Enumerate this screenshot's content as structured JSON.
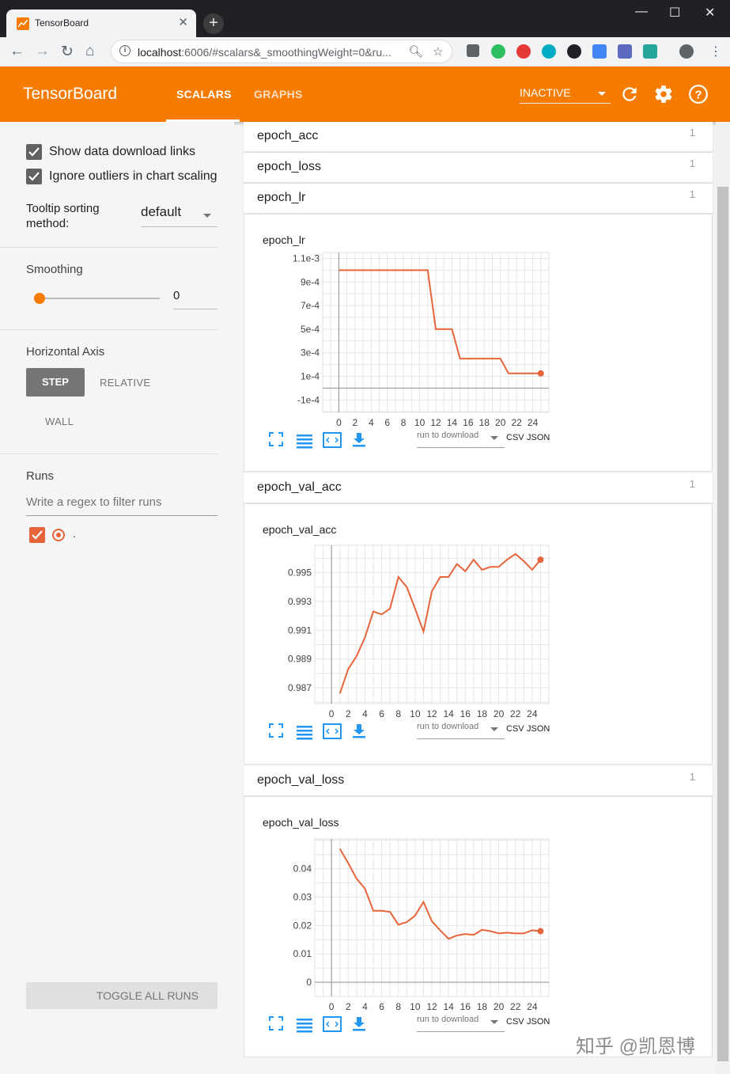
{
  "browser": {
    "tab_title": "TensorBoard",
    "tab_close": "✕",
    "new_tab": "+",
    "url_host": "localhost",
    "url_rest": ":6006/#scalars&_smoothingWeight=0&ru...",
    "window_controls": [
      "—",
      "☐",
      "✕"
    ]
  },
  "header": {
    "brand": "TensorBoard",
    "tabs": [
      {
        "label": "SCALARS",
        "active": true
      },
      {
        "label": "GRAPHS",
        "active": false
      }
    ],
    "status": "INACTIVE",
    "accent": "#f57c00"
  },
  "sidebar": {
    "show_download": "Show data download links",
    "ignore_outliers": "Ignore outliers in chart scaling",
    "tooltip_label_1": "Tooltip sorting",
    "tooltip_label_2": "method:",
    "tooltip_value": "default",
    "smoothing_label": "Smoothing",
    "smoothing_value": "0",
    "smoothing_level": 0,
    "haxis_label": "Horizontal Axis",
    "haxis_options": [
      "STEP",
      "RELATIVE",
      "WALL"
    ],
    "runs_label": "Runs",
    "filter_placeholder": "Write a regex to filter runs",
    "run_name": ".",
    "run_color": "#e8643a",
    "toggle_all": "TOGGLE ALL RUNS"
  },
  "categories": [
    {
      "name": "epoch_acc",
      "count": "1"
    },
    {
      "name": "epoch_loss",
      "count": "1"
    },
    {
      "name": "epoch_lr",
      "count": "1"
    },
    {
      "name": "epoch_val_acc",
      "count": "1"
    },
    {
      "name": "epoch_val_loss",
      "count": "1"
    }
  ],
  "chart_actions": {
    "run_to_download": "run to download",
    "csv": "CSV",
    "json": "JSON"
  },
  "chart_data": [
    {
      "type": "line",
      "title": "epoch_lr",
      "x": [
        0,
        1,
        2,
        3,
        4,
        5,
        6,
        7,
        8,
        9,
        10,
        11,
        12,
        13,
        14,
        15,
        16,
        17,
        18,
        19,
        20,
        21,
        22,
        23,
        24,
        25
      ],
      "series": [
        {
          "values": [
            0.001,
            0.001,
            0.001,
            0.001,
            0.001,
            0.001,
            0.001,
            0.001,
            0.001,
            0.001,
            0.001,
            0.001,
            0.0005,
            0.0005,
            0.0005,
            0.00025,
            0.00025,
            0.00025,
            0.00025,
            0.00025,
            0.00025,
            0.000125,
            0.000125,
            0.000125,
            0.000125,
            0.000125
          ]
        }
      ],
      "xticks": [
        0,
        2,
        4,
        6,
        8,
        10,
        12,
        14,
        16,
        18,
        20,
        22,
        24
      ],
      "yticks": [
        -0.0001,
        0.0001,
        0.0003,
        0.0005,
        0.0007,
        0.0009,
        0.0011
      ],
      "ytick_labels": [
        "-1e-4",
        "1e-4",
        "3e-4",
        "5e-4",
        "7e-4",
        "9e-4",
        "1.1e-3"
      ],
      "xlim": [
        -2,
        26
      ],
      "ylim": [
        -0.000205,
        0.00115
      ]
    },
    {
      "type": "line",
      "title": "epoch_val_acc",
      "x": [
        1,
        2,
        3,
        4,
        5,
        6,
        7,
        8,
        9,
        10,
        11,
        12,
        13,
        14,
        15,
        16,
        17,
        18,
        19,
        20,
        21,
        22,
        23,
        24,
        25
      ],
      "series": [
        {
          "values": [
            0.9866,
            0.9883,
            0.9892,
            0.9905,
            0.9923,
            0.9921,
            0.9925,
            0.9947,
            0.994,
            0.9925,
            0.9909,
            0.9937,
            0.9947,
            0.9947,
            0.9956,
            0.9951,
            0.9959,
            0.9952,
            0.9954,
            0.9954,
            0.9959,
            0.9963,
            0.9958,
            0.9952,
            0.9959
          ]
        }
      ],
      "xticks": [
        0,
        2,
        4,
        6,
        8,
        10,
        12,
        14,
        16,
        18,
        20,
        22,
        24
      ],
      "yticks": [
        0.987,
        0.989,
        0.991,
        0.993,
        0.995
      ],
      "ytick_labels": [
        "0.987",
        "0.989",
        "0.991",
        "0.993",
        "0.995"
      ],
      "xlim": [
        -2,
        26
      ],
      "ylim": [
        0.9859,
        0.9969
      ]
    },
    {
      "type": "line",
      "title": "epoch_val_loss",
      "x": [
        1,
        2,
        3,
        4,
        5,
        6,
        7,
        8,
        9,
        10,
        11,
        12,
        13,
        14,
        15,
        16,
        17,
        18,
        19,
        20,
        21,
        22,
        23,
        24,
        25
      ],
      "series": [
        {
          "values": [
            0.047,
            0.042,
            0.0365,
            0.033,
            0.0252,
            0.0252,
            0.0248,
            0.0203,
            0.0212,
            0.0235,
            0.0283,
            0.0215,
            0.0183,
            0.0153,
            0.0165,
            0.017,
            0.0167,
            0.0185,
            0.018,
            0.0172,
            0.0175,
            0.0172,
            0.0172,
            0.0183,
            0.018
          ]
        }
      ],
      "xticks": [
        0,
        2,
        4,
        6,
        8,
        10,
        12,
        14,
        16,
        18,
        20,
        22,
        24
      ],
      "yticks": [
        0,
        0.01,
        0.02,
        0.03,
        0.04
      ],
      "ytick_labels": [
        "0",
        "0.01",
        "0.02",
        "0.03",
        "0.04"
      ],
      "xlim": [
        -2,
        26
      ],
      "ylim": [
        -0.005,
        0.0505
      ]
    }
  ],
  "watermark": "知乎 @凯恩博"
}
